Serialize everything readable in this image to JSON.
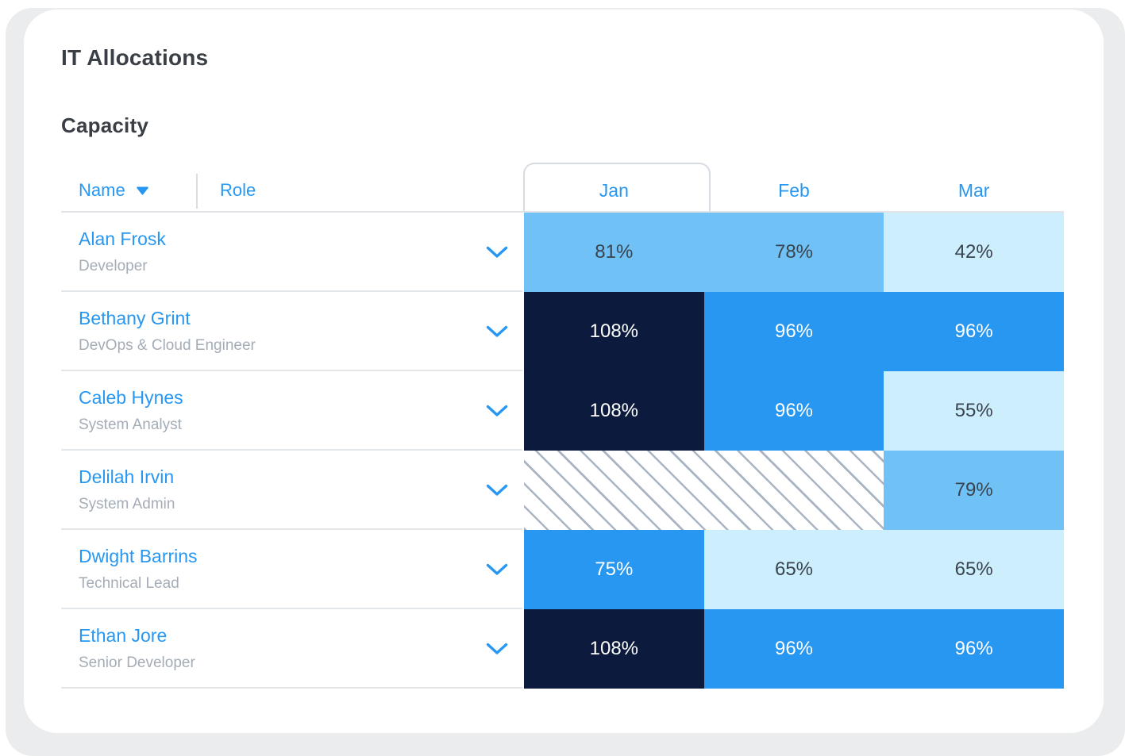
{
  "page": {
    "title": "IT Allocations",
    "section_title": "Capacity"
  },
  "table": {
    "name_header": "Name",
    "role_header": "Role",
    "months": [
      "Jan",
      "Feb",
      "Mar"
    ],
    "selected_month": "Jan",
    "rows": [
      {
        "name": "Alan Frosk",
        "role": "Developer",
        "cells": [
          {
            "month": "Jan",
            "value": "81%",
            "style": "medium",
            "span": 1
          },
          {
            "month": "Feb",
            "value": "78%",
            "style": "medium",
            "span": 1
          },
          {
            "month": "Mar",
            "value": "42%",
            "style": "light",
            "span": 1
          }
        ]
      },
      {
        "name": "Bethany Grint",
        "role": "DevOps & Cloud Engineer",
        "cells": [
          {
            "month": "Jan",
            "value": "108%",
            "style": "navy",
            "span": 1
          },
          {
            "month": "Feb",
            "value": "96%",
            "style": "bright",
            "span": 1
          },
          {
            "month": "Mar",
            "value": "96%",
            "style": "bright",
            "span": 1
          }
        ]
      },
      {
        "name": "Caleb Hynes",
        "role": "System Analyst",
        "cells": [
          {
            "month": "Jan",
            "value": "108%",
            "style": "navy",
            "span": 1
          },
          {
            "month": "Feb",
            "value": "96%",
            "style": "bright",
            "span": 1
          },
          {
            "month": "Mar",
            "value": "55%",
            "style": "light",
            "span": 1
          }
        ]
      },
      {
        "name": "Delilah Irvin",
        "role": "System Admin",
        "cells": [
          {
            "month": "Jan-Feb",
            "value": "",
            "style": "hatch",
            "span": 2
          },
          {
            "month": "Mar",
            "value": "79%",
            "style": "medium",
            "span": 1
          }
        ]
      },
      {
        "name": "Dwight Barrins",
        "role": "Technical Lead",
        "cells": [
          {
            "month": "Jan",
            "value": "75%",
            "style": "bright",
            "span": 1
          },
          {
            "month": "Feb",
            "value": "65%",
            "style": "light",
            "span": 1
          },
          {
            "month": "Mar",
            "value": "65%",
            "style": "light",
            "span": 1
          }
        ]
      },
      {
        "name": "Ethan Jore",
        "role": "Senior Developer",
        "cells": [
          {
            "month": "Jan",
            "value": "108%",
            "style": "navy",
            "span": 1
          },
          {
            "month": "Feb",
            "value": "96%",
            "style": "bright",
            "span": 1
          },
          {
            "month": "Mar",
            "value": "96%",
            "span": 1,
            "style": "bright"
          }
        ]
      }
    ]
  },
  "colors": {
    "accent_blue": "#2797f2",
    "cell_navy": "#0c1b3d",
    "cell_bright": "#2797f2",
    "cell_medium": "#70c1f5",
    "cell_light": "#cdeefc",
    "cell_dark_text": "#39444f",
    "cell_light_text": "#ffffff",
    "hatch_stripe": "#aab5c3"
  },
  "icons": {
    "sort_caret": "caret-down",
    "row_expander": "chevron-down"
  }
}
